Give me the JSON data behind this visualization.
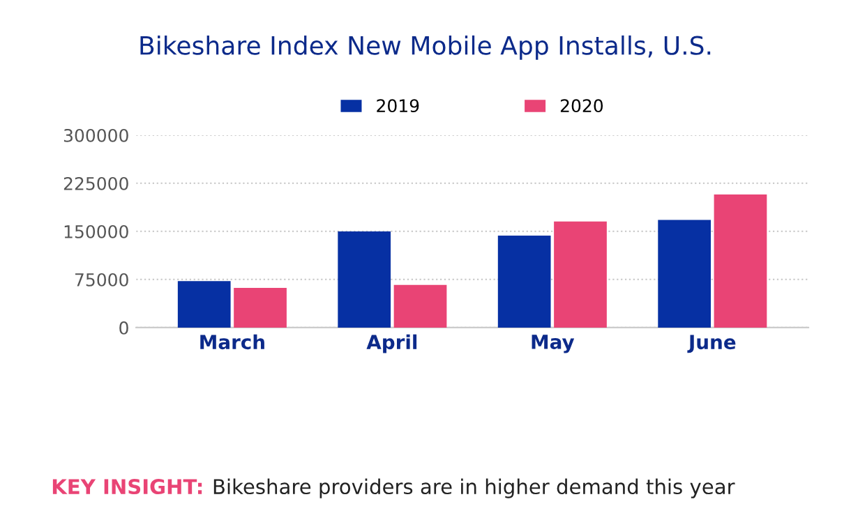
{
  "chart_data": {
    "type": "bar",
    "title": "Bikeshare Index New Mobile App Installs, U.S.",
    "categories": [
      "March",
      "April",
      "May",
      "June"
    ],
    "series": [
      {
        "name": "2019",
        "color": "#0630a3",
        "values": [
          72500,
          150000,
          143500,
          168000
        ]
      },
      {
        "name": "2020",
        "color": "#e94475",
        "values": [
          62000,
          66500,
          165500,
          207500
        ]
      }
    ],
    "ylim": [
      0,
      300000
    ],
    "yticks": [
      0,
      75000,
      150000,
      225000,
      300000
    ],
    "grid": "y",
    "legend": "top",
    "annotations": [
      "KEY INSIGHT:",
      "Bikeshare providers are in higher demand this year"
    ]
  }
}
